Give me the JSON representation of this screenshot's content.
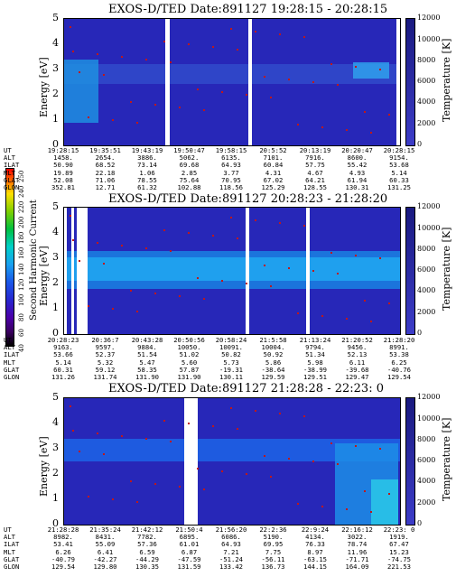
{
  "panels": [
    {
      "title": "EXOS-D/TED   Date:891127  19:28:15 - 20:28:15",
      "ephem": {
        "labels": [
          "UT",
          "ALT",
          "ILAT",
          "MLT",
          "GLAT",
          "GLON"
        ],
        "cols": [
          [
            "19:28:15",
            "1458.",
            "50.90",
            "19.89",
            "52.08",
            "352.81"
          ],
          [
            "19:35:51",
            "2654.",
            "68.52",
            "22.18",
            "71.06",
            "12.71"
          ],
          [
            "19:43:19",
            "3886.",
            "73.14",
            "1.06",
            "78.55",
            "61.32"
          ],
          [
            "19:50:47",
            "5062.",
            "69.68",
            "2.85",
            "75.64",
            "102.88"
          ],
          [
            "19:58:15",
            "6135.",
            "64.93",
            "3.77",
            "70.95",
            "118.56"
          ],
          [
            "20:5:52",
            "7101.",
            "60.84",
            "4.31",
            "67.02",
            "125.29"
          ],
          [
            "20:13:19",
            "7916.",
            "57.75",
            "4.67",
            "64.21",
            "128.55"
          ],
          [
            "20:20:47",
            "8600.",
            "55.42",
            "4.93",
            "61.94",
            "130.31"
          ],
          [
            "20:28:15",
            "9154.",
            "53.68",
            "5.14",
            "60.33",
            "131.25"
          ]
        ]
      }
    },
    {
      "title": "EXOS-D/TED   Date:891127  20:28:23 - 21:28:20",
      "ephem": {
        "labels": [
          "UT",
          "ALT",
          "ILAT",
          "MLT",
          "GLAT",
          "GLON"
        ],
        "cols": [
          [
            "20:28:23",
            "9163.",
            "53.66",
            "5.14",
            "60.31",
            "131.26"
          ],
          [
            "20:36:7",
            "9597.",
            "52.37",
            "5.32",
            "59.12",
            "131.74"
          ],
          [
            "20:43:28",
            "9884.",
            "51.54",
            "5.47",
            "58.35",
            "131.90"
          ],
          [
            "20:50:56",
            "10050.",
            "51.02",
            "5.60",
            "57.87",
            "131.90"
          ],
          [
            "20:58:24",
            "10091.",
            "50.82",
            "5.73",
            "-19.31",
            "130.11"
          ],
          [
            "21:5:58",
            "10004.",
            "50.92",
            "5.86",
            "-38.64",
            "129.59"
          ],
          [
            "21:13:24",
            "9794.",
            "51.34",
            "5.98",
            "-38.99",
            "129.51"
          ],
          [
            "21:20:52",
            "9456.",
            "52.13",
            "6.11",
            "-39.68",
            "129.47"
          ],
          [
            "21:28:20",
            "8991.",
            "53.38",
            "6.25",
            "-40.76",
            "129.54"
          ]
        ]
      }
    },
    {
      "title": "EXOS-D/TED   Date:891127  21:28:28 - 22:23: 0",
      "ephem": {
        "labels": [
          "UT",
          "ALT",
          "ILAT",
          "MLT",
          "GLAT",
          "GLON"
        ],
        "cols": [
          [
            "21:28:28",
            "8982.",
            "53.41",
            "6.26",
            "-40.79",
            "129.54"
          ],
          [
            "21:35:24",
            "8431.",
            "55.09",
            "6.41",
            "-42.27",
            "129.80"
          ],
          [
            "21:42:12",
            "7782.",
            "57.36",
            "6.59",
            "-44.29",
            "130.35"
          ],
          [
            "21:50:4",
            "6895.",
            "61.01",
            "6.87",
            "-47.59",
            "131.59"
          ],
          [
            "21:56:20",
            "6086.",
            "64.93",
            "7.21",
            "-51.24",
            "133.42"
          ],
          [
            "22:2:36",
            "5190.",
            "69.95",
            "7.75",
            "-56.11",
            "136.73"
          ],
          [
            "22:9:24",
            "4134.",
            "76.33",
            "8.97",
            "-63.15",
            "144.15"
          ],
          [
            "22:16:12",
            "3022.",
            "78.74",
            "11.96",
            "-71.71",
            "164.09"
          ],
          [
            "22:23: 0",
            "1919.",
            "67.47",
            "15.23",
            "-74.75",
            "221.53"
          ]
        ]
      }
    }
  ],
  "axis": {
    "y_label": "Energy [eV]",
    "y_ticks": [
      "0",
      "1",
      "2",
      "3",
      "4",
      "5"
    ],
    "right_label": "Temperature [K]",
    "right_ticks": [
      "0",
      "2000",
      "4000",
      "6000",
      "8000",
      "10000",
      "12000"
    ]
  },
  "colorbar": {
    "label": "Second Harmonic Current",
    "ticks": [
      "40",
      "60",
      "80",
      "100",
      "120",
      "140",
      "160",
      "180",
      "200",
      "220",
      "240",
      "250"
    ]
  },
  "chart_data": {
    "type": "heatmap",
    "xlabel": "UT",
    "ylabel": "Energy [eV]",
    "ylim": [
      0,
      5
    ],
    "right_axis": "Temperature [K]",
    "right_lim": [
      0,
      12000
    ],
    "colorbar_label": "Second Harmonic Current",
    "panels": 3
  }
}
